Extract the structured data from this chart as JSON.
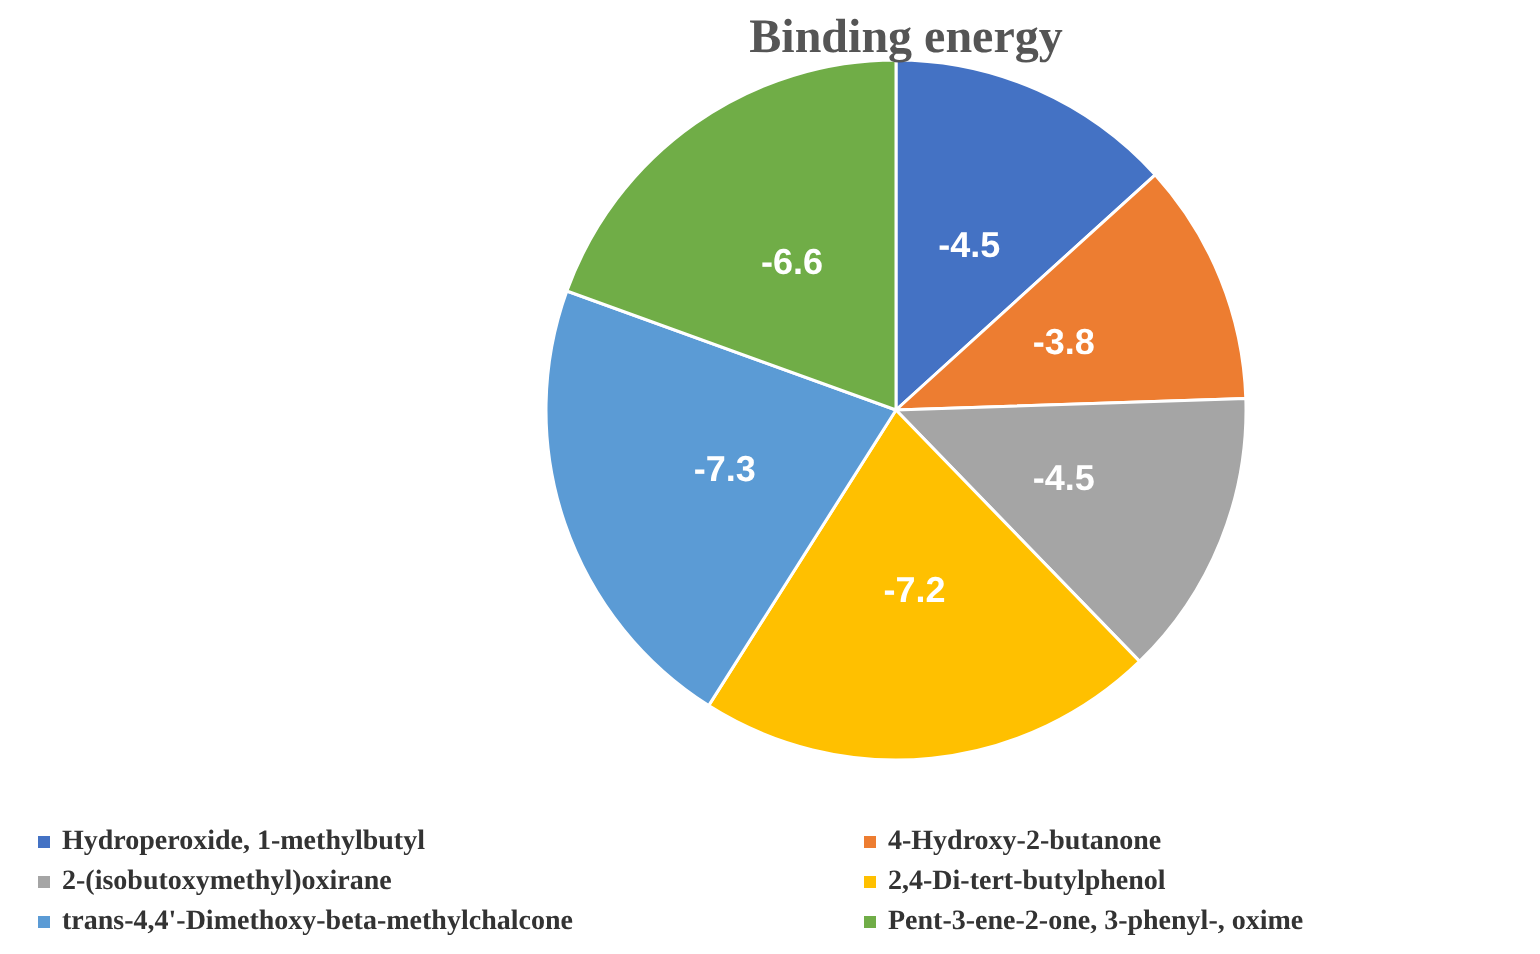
{
  "chart_data": {
    "type": "pie",
    "title": "Binding energy",
    "categories": [
      "Hydroperoxide, 1-methylbutyl",
      "4-Hydroxy-2-butanone",
      "2-(isobutoxymethyl)oxirane",
      "2,4-Di-tert-butylphenol",
      "trans-4,4'-Dimethoxy-beta-methylchalcone",
      "Pent-3-ene-2-one, 3-phenyl-, oxime"
    ],
    "values": [
      13.27,
      11.21,
      13.27,
      21.24,
      21.53,
      19.48
    ],
    "colors": [
      "#4472c4",
      "#ed7d31",
      "#a5a5a5",
      "#ffc000",
      "#5b9bd5",
      "#70ad47"
    ],
    "annotations": [
      "-4.5",
      "-3.8",
      "-4.5",
      "-7.2",
      "-7.3",
      "-6.6"
    ],
    "legend": "bottom"
  }
}
